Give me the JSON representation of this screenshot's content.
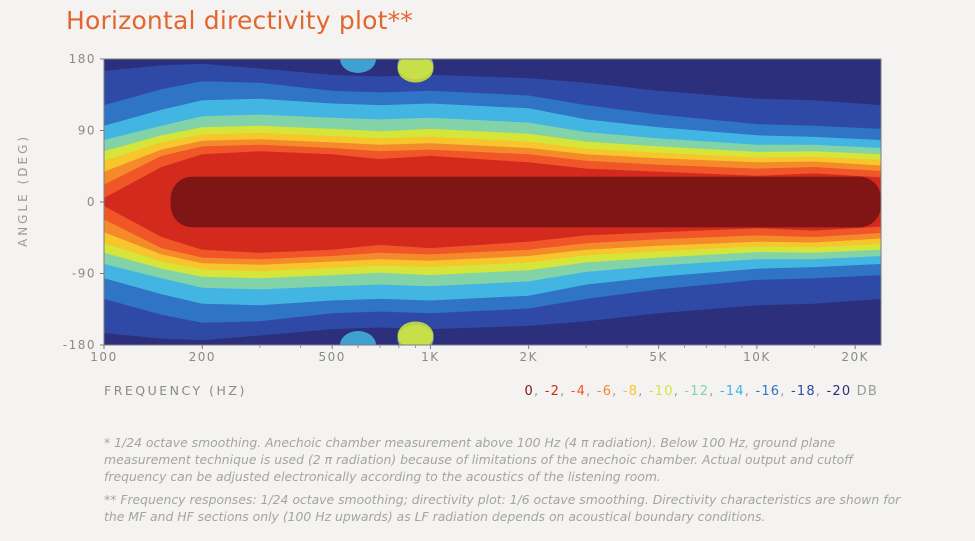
{
  "page": {
    "title": "Horizontal directivity plot**",
    "footnote_1": "* 1/24 octave smoothing. Anechoic chamber measurement above 100 Hz (4 π radiation). Below 100 Hz, ground plane measurement technique is used (2 π radiation) because of limitations of the anechoic chamber. Actual output and cutoff frequency can be adjusted electronically according to the acoustics of the listening room.",
    "footnote_2": "** Frequency responses: 1/24 octave smoothing; directivity plot: 1/6 octave smoothing. Directivity characteristics are shown for the MF and HF sections only (100 Hz upwards) as LF radiation depends on acoustical boundary conditions."
  },
  "chart_data": {
    "type": "heatmap",
    "title": "Horizontal directivity plot**",
    "xlabel": "FREQUENCY (HZ)",
    "ylabel": "ANGLE (DEG)",
    "x_scale": "log",
    "xlim": [
      100,
      24000
    ],
    "ylim": [
      -180,
      180
    ],
    "x_ticks": [
      100,
      200,
      500,
      1000,
      2000,
      5000,
      10000,
      20000
    ],
    "x_tick_labels": [
      "100",
      "200",
      "500",
      "1K",
      "2K",
      "5K",
      "10K",
      "20K"
    ],
    "y_ticks": [
      180,
      90,
      0,
      -90,
      -180
    ],
    "y_tick_labels": [
      "180",
      "90",
      "0",
      "-90",
      "-180"
    ],
    "levels_db": [
      0,
      -2,
      -4,
      -6,
      -8,
      -10,
      -12,
      -14,
      -16,
      -18,
      -20
    ],
    "level_labels": [
      "0",
      "-2",
      "-4",
      "-6",
      "-8",
      "-10",
      "-12",
      "-14",
      "-16",
      "-18",
      "-20"
    ],
    "legend_unit": "DB",
    "level_colors": [
      "#7f1515",
      "#d42a1d",
      "#f05628",
      "#f58a2a",
      "#f7c52c",
      "#d6e539",
      "#82d3a8",
      "#43b5e2",
      "#2f74c5",
      "#2e4aa6",
      "#2b2f7c"
    ],
    "contours_half_angle_deg": [
      {
        "level": -2,
        "x": [
          100,
          150,
          200,
          300,
          500,
          700,
          1000,
          2000,
          3000,
          5000,
          10000,
          15000,
          24000
        ],
        "angle": [
          5,
          44,
          60,
          64,
          60,
          54,
          58,
          50,
          42,
          38,
          33,
          36,
          31
        ]
      },
      {
        "level": -4,
        "x": [
          100,
          150,
          200,
          300,
          500,
          700,
          1000,
          2000,
          3000,
          5000,
          10000,
          15000,
          24000
        ],
        "angle": [
          22,
          58,
          70,
          72,
          68,
          64,
          66,
          60,
          52,
          47,
          42,
          44,
          39
        ]
      },
      {
        "level": -6,
        "x": [
          100,
          150,
          200,
          300,
          500,
          700,
          1000,
          2000,
          3000,
          5000,
          10000,
          15000,
          24000
        ],
        "angle": [
          38,
          66,
          77,
          79,
          75,
          72,
          74,
          68,
          60,
          55,
          50,
          51,
          46
        ]
      },
      {
        "level": -8,
        "x": [
          100,
          150,
          200,
          300,
          500,
          700,
          1000,
          2000,
          3000,
          5000,
          10000,
          15000,
          24000
        ],
        "angle": [
          52,
          75,
          85,
          87,
          83,
          80,
          82,
          76,
          67,
          62,
          56,
          57,
          53
        ]
      },
      {
        "level": -10,
        "x": [
          100,
          150,
          200,
          300,
          500,
          700,
          1000,
          2000,
          3000,
          5000,
          10000,
          15000,
          24000
        ],
        "angle": [
          64,
          84,
          94,
          96,
          92,
          89,
          92,
          86,
          76,
          70,
          63,
          64,
          60
        ]
      },
      {
        "level": -12,
        "x": [
          100,
          150,
          200,
          300,
          500,
          700,
          1000,
          2000,
          3000,
          5000,
          10000,
          15000,
          24000
        ],
        "angle": [
          78,
          96,
          108,
          110,
          106,
          104,
          106,
          100,
          88,
          80,
          72,
          72,
          68
        ]
      },
      {
        "level": -14,
        "x": [
          100,
          150,
          200,
          300,
          500,
          700,
          1000,
          2000,
          3000,
          5000,
          10000,
          15000,
          24000
        ],
        "angle": [
          96,
          116,
          128,
          130,
          124,
          122,
          124,
          118,
          104,
          94,
          84,
          82,
          78
        ]
      },
      {
        "level": -16,
        "x": [
          100,
          150,
          200,
          300,
          500,
          700,
          1000,
          2000,
          3000,
          5000,
          10000,
          15000,
          24000
        ],
        "angle": [
          122,
          142,
          152,
          150,
          140,
          138,
          140,
          134,
          122,
          110,
          98,
          96,
          92
        ]
      },
      {
        "level": -18,
        "x": [
          100,
          150,
          200,
          300,
          500,
          700,
          1000,
          2000,
          3000,
          5000,
          10000,
          15000,
          24000
        ],
        "angle": [
          165,
          172,
          174,
          168,
          160,
          158,
          160,
          156,
          150,
          140,
          130,
          128,
          122
        ]
      }
    ],
    "rear_lobes": [
      {
        "x": 600,
        "angle": 180,
        "level": -14
      },
      {
        "x": 900,
        "angle": 172,
        "level": -12
      },
      {
        "x": 900,
        "angle": 168,
        "level": -10
      },
      {
        "x": 600,
        "angle": -180,
        "level": -14
      },
      {
        "x": 900,
        "angle": -172,
        "level": -12
      },
      {
        "x": 900,
        "angle": -168,
        "level": -10
      }
    ]
  }
}
